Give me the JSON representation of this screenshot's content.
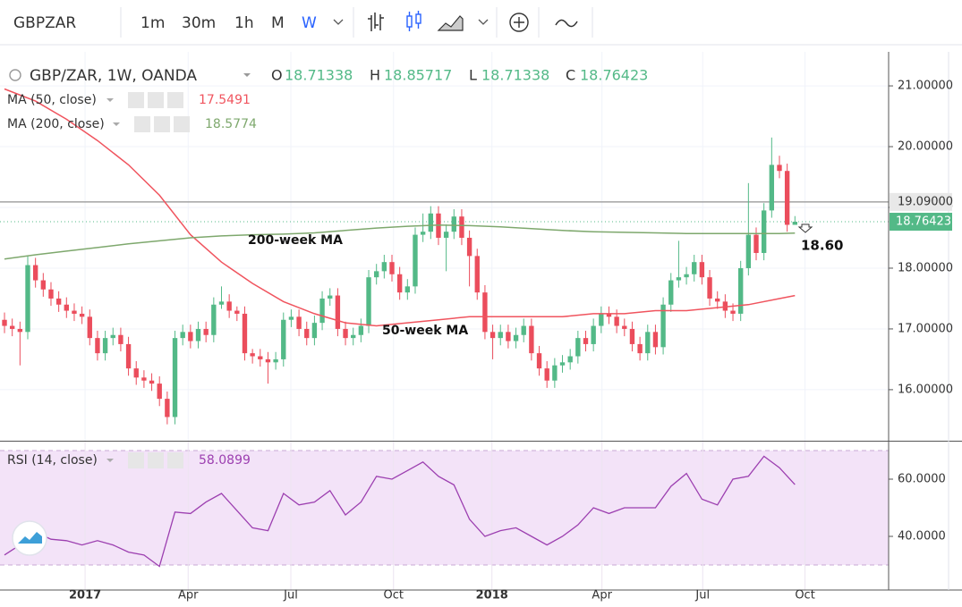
{
  "toolbar": {
    "symbol": "GBPZAR",
    "intervals": [
      "1m",
      "30m",
      "1h",
      "M",
      "W"
    ],
    "active_interval": 4
  },
  "chart_data": [
    {
      "type": "candlestick",
      "title": "GBP/ZAR, 1W, OANDA",
      "legend_values": [
        {
          "key": "O",
          "value": "18.71338"
        },
        {
          "key": "H",
          "value": "18.85717"
        },
        {
          "key": "L",
          "value": "18.71338"
        },
        {
          "key": "C",
          "value": "18.76423"
        }
      ],
      "open": [
        17.15,
        17.05,
        17.0,
        16.95,
        18.05,
        17.8,
        17.65,
        17.5,
        17.4,
        17.3,
        17.25,
        17.2,
        16.85,
        16.6,
        16.85,
        16.9,
        16.75,
        16.35,
        16.2,
        16.15,
        16.1,
        15.85,
        15.55,
        16.85,
        16.95,
        16.8,
        17.0,
        16.9,
        17.4,
        17.45,
        17.3,
        17.25,
        16.6,
        16.55,
        16.5,
        16.45,
        16.5,
        17.15,
        17.2,
        17.0,
        16.85,
        17.1,
        17.5,
        17.55,
        17.0,
        16.85,
        16.9,
        17.05,
        17.85,
        17.95,
        18.1,
        17.9,
        17.6,
        17.7,
        18.55,
        18.6,
        18.9,
        18.5,
        18.6,
        18.85,
        18.5,
        18.2,
        17.6,
        16.95,
        16.85,
        16.95,
        16.8,
        16.9,
        17.05,
        16.6,
        16.35,
        16.15,
        16.4,
        16.45,
        16.55,
        16.85,
        16.75,
        17.05,
        17.25,
        17.2,
        17.05,
        17.0,
        16.75,
        16.6,
        16.95,
        16.7,
        17.4,
        17.8,
        17.85,
        17.9,
        18.1,
        17.85,
        17.5,
        17.45,
        17.3,
        17.25,
        18.0,
        18.55,
        18.25,
        18.95,
        19.7,
        19.6,
        18.71338
      ],
      "high": [
        17.27,
        17.17,
        17.12,
        18.2,
        18.17,
        17.92,
        17.77,
        17.62,
        17.52,
        17.42,
        17.37,
        17.32,
        16.97,
        16.97,
        17.02,
        17.02,
        16.87,
        16.47,
        16.32,
        16.27,
        16.22,
        15.97,
        16.97,
        17.07,
        17.07,
        17.12,
        17.12,
        17.52,
        17.7,
        17.57,
        17.37,
        17.37,
        16.67,
        16.67,
        16.62,
        16.62,
        17.27,
        17.32,
        17.32,
        17.12,
        17.22,
        17.62,
        17.67,
        17.67,
        17.12,
        17.02,
        17.17,
        17.97,
        18.07,
        18.22,
        18.22,
        18.02,
        17.82,
        18.67,
        18.9,
        19.02,
        19.02,
        18.72,
        18.97,
        18.97,
        18.62,
        18.32,
        17.72,
        17.07,
        17.07,
        17.07,
        17.02,
        17.17,
        17.17,
        16.72,
        16.47,
        16.52,
        16.57,
        16.67,
        16.97,
        16.97,
        17.17,
        17.37,
        17.37,
        17.32,
        17.17,
        17.12,
        16.87,
        17.07,
        17.07,
        17.52,
        17.92,
        18.45,
        18.02,
        18.22,
        18.22,
        17.97,
        17.62,
        17.57,
        17.42,
        18.12,
        19.4,
        18.67,
        19.07,
        20.15,
        19.85,
        19.72,
        18.85717
      ],
      "low": [
        16.93,
        16.88,
        16.4,
        16.83,
        17.68,
        17.53,
        17.38,
        17.28,
        17.18,
        17.13,
        17.08,
        16.73,
        16.48,
        16.48,
        16.73,
        16.63,
        16.23,
        16.08,
        16.03,
        15.98,
        15.73,
        15.43,
        15.43,
        16.73,
        16.68,
        16.68,
        16.78,
        16.78,
        17.33,
        17.18,
        17.13,
        16.48,
        16.43,
        16.38,
        16.1,
        16.33,
        16.38,
        17.03,
        16.88,
        16.73,
        16.73,
        16.98,
        17.38,
        16.88,
        16.73,
        16.73,
        16.78,
        16.93,
        17.73,
        17.83,
        17.78,
        17.48,
        17.48,
        17.58,
        18.43,
        18.48,
        18.38,
        17.95,
        18.48,
        18.38,
        17.7,
        17.48,
        16.83,
        16.5,
        16.73,
        16.68,
        16.68,
        16.78,
        16.48,
        16.23,
        16.03,
        16.03,
        16.28,
        16.33,
        16.43,
        16.63,
        16.63,
        16.93,
        17.08,
        16.93,
        16.88,
        16.63,
        16.48,
        16.48,
        16.58,
        16.58,
        17.28,
        17.68,
        17.73,
        17.78,
        17.73,
        17.38,
        17.33,
        17.18,
        17.13,
        17.13,
        17.88,
        18.13,
        18.13,
        18.83,
        19.48,
        18.6,
        18.71338
      ],
      "close": [
        17.05,
        17.0,
        16.95,
        18.05,
        17.8,
        17.65,
        17.5,
        17.4,
        17.3,
        17.25,
        17.2,
        16.85,
        16.6,
        16.85,
        16.9,
        16.75,
        16.35,
        16.2,
        16.15,
        16.1,
        15.85,
        15.55,
        16.85,
        16.95,
        16.8,
        17.0,
        16.9,
        17.4,
        17.45,
        17.3,
        17.25,
        16.6,
        16.55,
        16.5,
        16.45,
        16.5,
        17.15,
        17.2,
        17.0,
        16.85,
        17.1,
        17.5,
        17.55,
        17.0,
        16.85,
        16.9,
        17.05,
        17.85,
        17.95,
        18.1,
        17.9,
        17.6,
        17.7,
        18.55,
        18.6,
        18.9,
        18.5,
        18.6,
        18.85,
        18.5,
        18.2,
        17.6,
        16.95,
        16.85,
        16.95,
        16.8,
        16.9,
        17.05,
        16.6,
        16.35,
        16.15,
        16.4,
        16.45,
        16.55,
        16.85,
        16.75,
        17.05,
        17.25,
        17.2,
        17.05,
        17.0,
        16.75,
        16.6,
        16.95,
        16.7,
        17.4,
        17.8,
        17.85,
        17.9,
        18.1,
        17.85,
        17.5,
        17.45,
        17.3,
        17.25,
        18.0,
        18.55,
        18.25,
        18.95,
        19.7,
        19.6,
        18.71338,
        18.76423
      ],
      "up_color": "#53b987",
      "down_color": "#eb4d5c",
      "series": [
        {
          "name": "MA (50, close)",
          "value_label": "17.5491",
          "color": "#f0545e",
          "x": [
            0,
            4,
            8,
            12,
            16,
            20,
            24,
            28,
            32,
            36,
            40,
            44,
            48,
            52,
            56,
            60,
            64,
            68,
            72,
            76,
            80,
            84,
            88,
            92,
            96,
            100,
            102
          ],
          "values": [
            20.95,
            20.75,
            20.45,
            20.1,
            19.7,
            19.2,
            18.55,
            18.1,
            17.75,
            17.45,
            17.25,
            17.1,
            17.05,
            17.1,
            17.15,
            17.2,
            17.2,
            17.2,
            17.2,
            17.25,
            17.25,
            17.3,
            17.3,
            17.35,
            17.4,
            17.5,
            17.5491
          ]
        },
        {
          "name": "MA (200, close)",
          "value_label": "18.5774",
          "color": "#7ea86d",
          "x": [
            0,
            4,
            8,
            12,
            16,
            20,
            24,
            28,
            32,
            36,
            40,
            44,
            48,
            52,
            56,
            60,
            64,
            68,
            72,
            76,
            80,
            84,
            88,
            92,
            96,
            100,
            102
          ],
          "values": [
            18.15,
            18.22,
            18.28,
            18.34,
            18.4,
            18.45,
            18.5,
            18.53,
            18.55,
            18.56,
            18.58,
            18.62,
            18.66,
            18.69,
            18.71,
            18.7,
            18.68,
            18.65,
            18.62,
            18.6,
            18.59,
            18.58,
            18.57,
            18.57,
            18.57,
            18.57,
            18.5774
          ]
        }
      ],
      "annotations": [
        "200-week MA",
        "50-week MA",
        "18.60"
      ],
      "hlines": [
        {
          "value": 19.09,
          "label": "19.09000",
          "color": "#a3a3a3"
        }
      ],
      "last_price": {
        "value": 18.76423,
        "label": "18.76423",
        "color": "#53b987"
      },
      "xlim": [
        -0.58,
        114.09
      ],
      "xticks": [
        {
          "value": 10.4,
          "label": "2017"
        },
        {
          "value": 23.7,
          "label": "Apr"
        },
        {
          "value": 36.95,
          "label": "Jul"
        },
        {
          "value": 50.2,
          "label": "Oct"
        },
        {
          "value": 62.9,
          "label": "2018"
        },
        {
          "value": 77.1,
          "label": "Apr"
        },
        {
          "value": 90.1,
          "label": "Jul"
        },
        {
          "value": 103.3,
          "label": "Oct"
        }
      ],
      "ylim": [
        15.16,
        21.56
      ],
      "yticks": [
        {
          "value": 16,
          "label": "16.00000"
        },
        {
          "value": 17,
          "label": "17.00000"
        },
        {
          "value": 18,
          "label": "18.00000"
        },
        {
          "value": 19,
          "label": "19.00000"
        },
        {
          "value": 20,
          "label": "20.00000"
        },
        {
          "value": 21,
          "label": "21.00000"
        }
      ],
      "grid": true
    },
    {
      "type": "line",
      "title": "RSI (14, close)",
      "value_label": "58.0899",
      "color": "#9c3fb0",
      "x": [
        0,
        2,
        4,
        6,
        8,
        10,
        12,
        14,
        16,
        18,
        20,
        22,
        24,
        26,
        28,
        30,
        32,
        34,
        36,
        38,
        40,
        42,
        44,
        46,
        48,
        50,
        52,
        54,
        56,
        58,
        60,
        62,
        64,
        66,
        68,
        70,
        72,
        74,
        76,
        78,
        80,
        82,
        84,
        86,
        88,
        90,
        92,
        94,
        96,
        98,
        100,
        102
      ],
      "values": [
        33.5,
        37,
        41.5,
        39,
        38.5,
        37,
        38.5,
        37,
        34.5,
        33.5,
        29.5,
        48.5,
        48,
        52,
        55,
        49,
        43,
        42,
        55,
        51,
        52,
        56,
        47.5,
        52,
        61,
        60,
        63,
        66,
        61,
        58,
        46,
        40,
        42,
        43,
        40,
        37,
        40,
        44,
        50,
        48,
        50,
        50,
        50,
        57.5,
        62,
        53,
        51,
        60,
        61,
        68,
        64,
        58.0899
      ],
      "band": [
        30,
        70
      ],
      "band_color": "#f3e3f8",
      "ylim": [
        21.25,
        73.44
      ],
      "yticks": [
        {
          "value": 40,
          "label": "40.0000"
        },
        {
          "value": 60,
          "label": "60.0000"
        }
      ]
    }
  ]
}
